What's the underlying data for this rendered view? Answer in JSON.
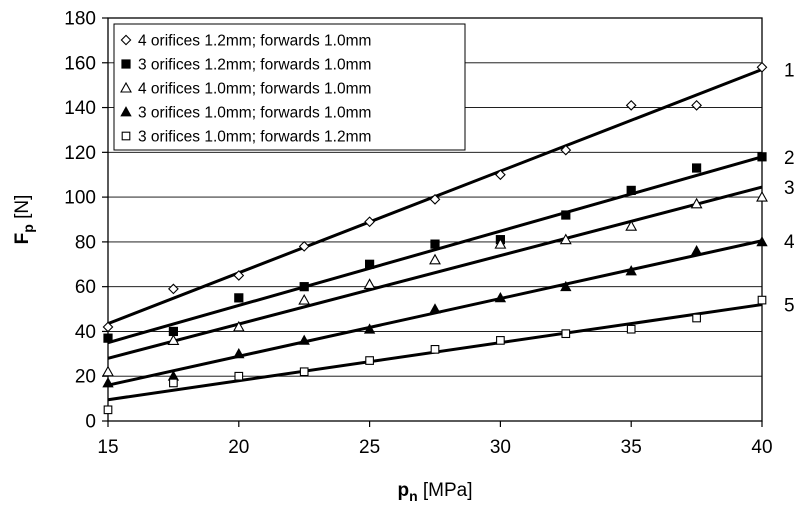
{
  "chart_data": {
    "type": "scatter",
    "title": "",
    "xlabel": {
      "main": "p",
      "sub": "n",
      "unit": " [MPa]"
    },
    "ylabel": {
      "main": "F",
      "sub": "p",
      "unit": " [N]"
    },
    "xlim": [
      15,
      40
    ],
    "ylim": [
      0,
      180
    ],
    "xticks": [
      15,
      20,
      25,
      30,
      35,
      40
    ],
    "yticks": [
      0,
      20,
      40,
      60,
      80,
      100,
      120,
      140,
      160,
      180
    ],
    "grid": "horizontal",
    "legend_position": "top-left",
    "series": [
      {
        "name": "4 orifices 1.2mm; forwards 1.0mm",
        "marker": "diamond-open",
        "line_label": "1",
        "x": [
          15,
          17.5,
          20,
          22.5,
          25,
          27.5,
          30,
          32.5,
          35,
          37.5,
          40
        ],
        "y": [
          42,
          59,
          65,
          78,
          89,
          99,
          110,
          121,
          141,
          141,
          158
        ],
        "fit": [
          [
            15,
            43.5
          ],
          [
            40,
            157
          ]
        ]
      },
      {
        "name": "3 orifices 1.2mm; forwards 1.0mm",
        "marker": "square-filled",
        "line_label": "2",
        "x": [
          15,
          17.5,
          20,
          22.5,
          25,
          27.5,
          30,
          32.5,
          35,
          37.5,
          40
        ],
        "y": [
          37,
          40,
          55,
          60,
          70,
          79,
          81,
          92,
          103,
          113,
          118
        ],
        "fit": [
          [
            15,
            35
          ],
          [
            40,
            118
          ]
        ]
      },
      {
        "name": "4 orifices 1.0mm; forwards 1.0mm",
        "marker": "triangle-open",
        "line_label": "3",
        "x": [
          15,
          17.5,
          20,
          22.5,
          25,
          27.5,
          30,
          32.5,
          35,
          37.5,
          40
        ],
        "y": [
          22,
          36,
          42,
          54,
          61,
          72,
          79,
          81,
          87,
          97,
          100
        ],
        "fit": [
          [
            15,
            28
          ],
          [
            40,
            104.5
          ]
        ]
      },
      {
        "name": "3 orifices 1.0mm; forwards 1.0mm",
        "marker": "triangle-filled",
        "line_label": "4",
        "x": [
          15,
          17.5,
          20,
          22.5,
          25,
          27.5,
          30,
          32.5,
          35,
          37.5,
          40
        ],
        "y": [
          17,
          20,
          30,
          36,
          41,
          50,
          55,
          60,
          67,
          76,
          80
        ],
        "fit": [
          [
            15,
            16
          ],
          [
            40,
            80.5
          ]
        ]
      },
      {
        "name": "3 orifices 1.0mm; forwards 1.2mm",
        "marker": "square-open",
        "line_label": "5",
        "x": [
          15,
          17.5,
          20,
          22.5,
          25,
          27.5,
          30,
          32.5,
          35,
          37.5,
          40
        ],
        "y": [
          5,
          17,
          20,
          22,
          27,
          32,
          36,
          39,
          41,
          46,
          54
        ],
        "fit": [
          [
            15,
            9.5
          ],
          [
            40,
            52
          ]
        ]
      }
    ]
  }
}
